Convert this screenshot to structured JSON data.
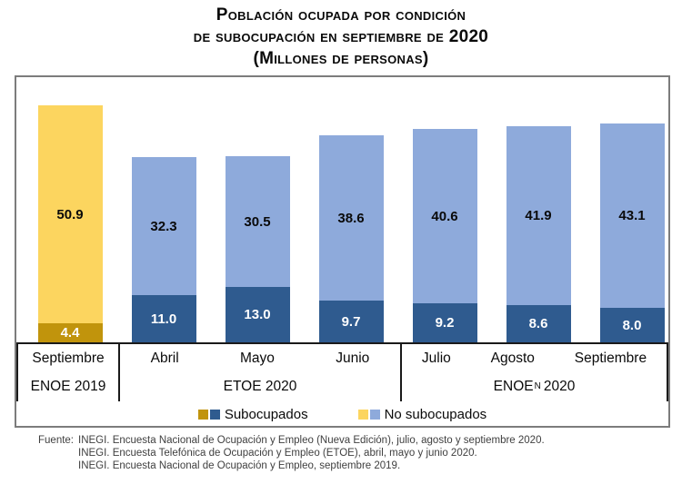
{
  "title": {
    "line1": "Población ocupada por condición",
    "line2": "de subocupación en septiembre de 2020",
    "line3": "(Millones de personas)"
  },
  "chart_data": {
    "type": "bar",
    "stacked": true,
    "title": "Población ocupada por condición de subocupación en septiembre de 2020",
    "unit": "Millones de personas",
    "ylim": [
      0,
      58
    ],
    "grid": false,
    "legend_position": "bottom",
    "categories": [
      "Septiembre",
      "Abril",
      "Mayo",
      "Junio",
      "Julio",
      "Agosto",
      "Septiembre"
    ],
    "series": [
      {
        "name": "Subocupados",
        "values": [
          4.4,
          11.0,
          13.0,
          9.7,
          9.2,
          8.6,
          8.0
        ]
      },
      {
        "name": "No subocupados",
        "values": [
          50.9,
          32.3,
          30.5,
          38.6,
          40.6,
          41.9,
          43.1
        ]
      }
    ],
    "groups": [
      {
        "months": [
          "Septiembre"
        ],
        "group_label": "ENOE 2019"
      },
      {
        "months": [
          "Abril",
          "Mayo",
          "Junio"
        ],
        "group_label": "ETOE 2020"
      },
      {
        "months": [
          "Julio",
          "Agosto",
          "Septiembre"
        ],
        "group_label_prefix": "ENOE",
        "group_label_sup": "N",
        "group_label_suffix": "2020"
      }
    ],
    "colors": {
      "subocupados_2019": "#C1940C",
      "no_subocupados_2019": "#FCD55F",
      "subocupados_2020": "#2F5B8F",
      "no_subocupados_2020": "#8EAADB"
    }
  },
  "legend": [
    {
      "label": "Subocupados",
      "swatches": [
        "#C1940C",
        "#2F5B8F"
      ]
    },
    {
      "label": "No subocupados",
      "swatches": [
        "#FCD55F",
        "#8EAADB"
      ]
    }
  ],
  "footer": {
    "label": "Fuente:",
    "lines": [
      "INEGI. Encuesta Nacional de Ocupación y Empleo (Nueva Edición), julio, agosto y septiembre 2020.",
      "INEGI. Encuesta Telefónica de Ocupación y Empleo (ETOE), abril, mayo y junio 2020.",
      "INEGI. Encuesta Nacional de Ocupación y Empleo, septiembre 2019."
    ]
  }
}
